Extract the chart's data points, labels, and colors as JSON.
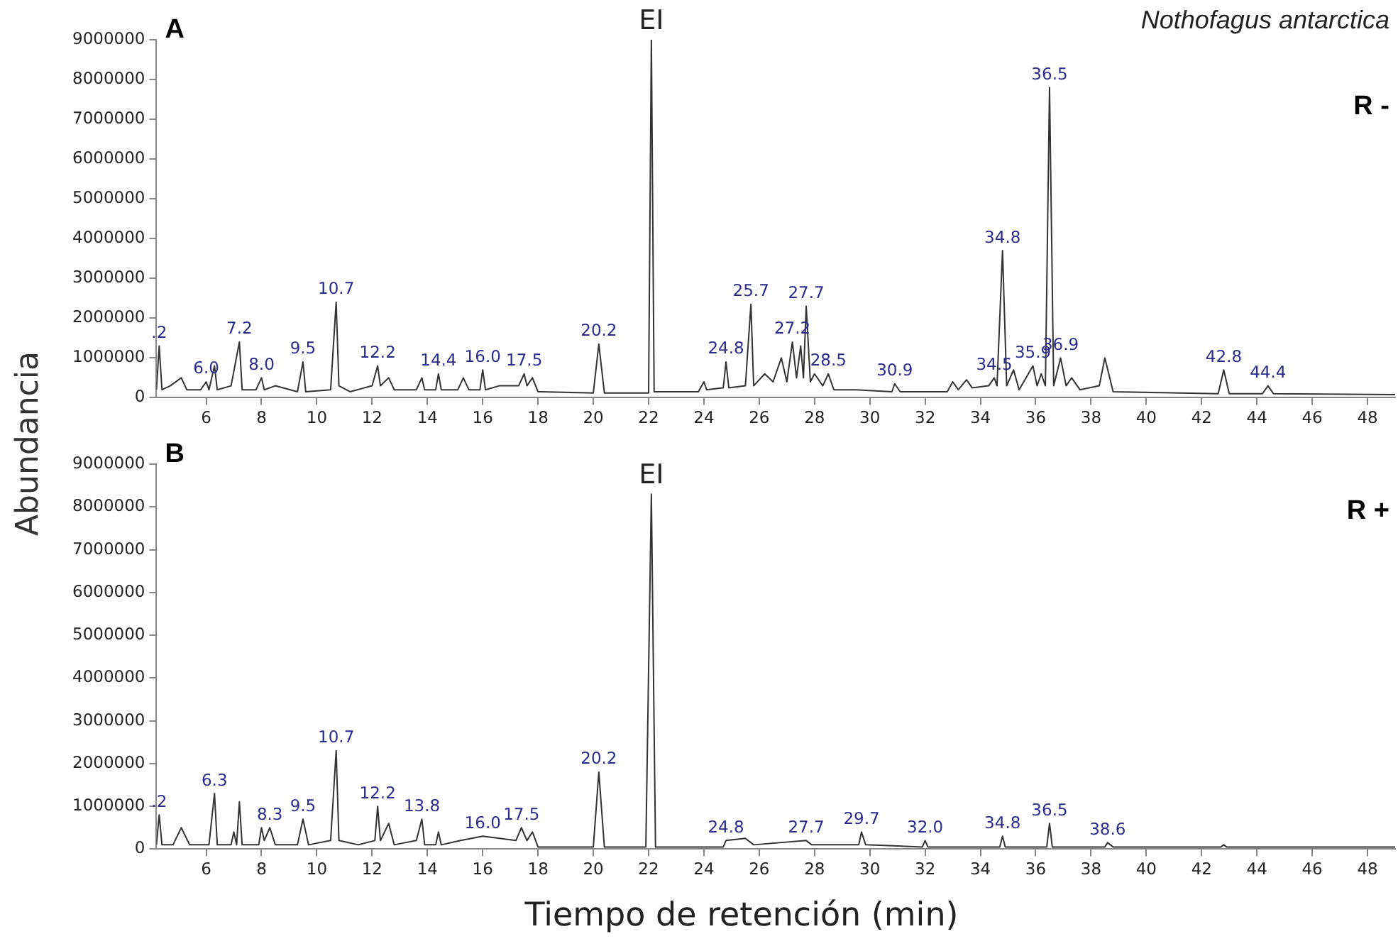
{
  "chart_data": [
    {
      "type": "line",
      "title": "A",
      "subtitle": "Nothofagus antarctica",
      "ylabel": "Abundancia",
      "color": "#333333",
      "marker": "none",
      "grid": false,
      "xlim": [
        4.2,
        49
      ],
      "xticks": [
        6,
        8,
        10,
        12,
        14,
        16,
        18,
        20,
        22,
        24,
        26,
        28,
        30,
        32,
        34,
        36,
        38,
        40,
        42,
        44,
        46,
        48
      ],
      "ylim": [
        0,
        9000000
      ],
      "yticks": [
        0,
        1000000,
        2000000,
        3000000,
        4000000,
        5000000,
        6000000,
        7000000,
        8000000,
        9000000
      ],
      "x": [
        4.2,
        4.3,
        4.4,
        4.7,
        5.1,
        5.3,
        5.8,
        6.0,
        6.1,
        6.3,
        6.4,
        6.9,
        7.2,
        7.3,
        7.8,
        8.0,
        8.1,
        8.5,
        9.3,
        9.5,
        9.6,
        10.5,
        10.7,
        10.8,
        11.2,
        12.0,
        12.2,
        12.3,
        12.6,
        12.8,
        13.6,
        13.8,
        13.9,
        14.3,
        14.4,
        14.5,
        15.1,
        15.3,
        15.5,
        15.9,
        16.0,
        16.1,
        16.6,
        17.3,
        17.5,
        17.6,
        17.8,
        18.0,
        20.0,
        20.2,
        20.4,
        22.0,
        22.1,
        22.2,
        23.8,
        24.0,
        24.1,
        24.7,
        24.8,
        24.9,
        25.5,
        25.7,
        25.8,
        26.2,
        26.5,
        26.8,
        27.0,
        27.2,
        27.35,
        27.5,
        27.6,
        27.7,
        27.85,
        28.0,
        28.3,
        28.5,
        28.7,
        29.5,
        30.8,
        30.9,
        31.1,
        32.8,
        33.0,
        33.2,
        33.5,
        33.7,
        34.3,
        34.5,
        34.6,
        34.8,
        34.95,
        35.2,
        35.4,
        35.9,
        36.05,
        36.2,
        36.35,
        36.5,
        36.65,
        36.9,
        37.1,
        37.3,
        37.6,
        38.3,
        38.5,
        38.8,
        42.6,
        42.8,
        43.0,
        44.2,
        44.4,
        44.6,
        49
      ],
      "values": [
        200000,
        1300000,
        200000,
        300000,
        500000,
        200000,
        200000,
        400000,
        200000,
        800000,
        200000,
        300000,
        1400000,
        200000,
        200000,
        500000,
        200000,
        300000,
        150000,
        900000,
        150000,
        200000,
        2400000,
        300000,
        150000,
        300000,
        800000,
        300000,
        500000,
        200000,
        200000,
        500000,
        200000,
        200000,
        600000,
        200000,
        200000,
        500000,
        200000,
        200000,
        700000,
        200000,
        300000,
        300000,
        600000,
        300000,
        500000,
        150000,
        120000,
        1350000,
        120000,
        120000,
        9000000,
        150000,
        150000,
        400000,
        200000,
        250000,
        900000,
        250000,
        300000,
        2350000,
        300000,
        600000,
        400000,
        1000000,
        400000,
        1400000,
        500000,
        1300000,
        500000,
        2300000,
        400000,
        600000,
        300000,
        600000,
        200000,
        200000,
        150000,
        350000,
        150000,
        150000,
        400000,
        200000,
        450000,
        250000,
        300000,
        500000,
        300000,
        3700000,
        300000,
        700000,
        200000,
        800000,
        300000,
        600000,
        300000,
        7800000,
        300000,
        1000000,
        300000,
        500000,
        200000,
        300000,
        1000000,
        150000,
        100000,
        700000,
        100000,
        100000,
        300000,
        100000,
        80000
      ],
      "annotations": [
        {
          "text": ".2",
          "x": 4.3,
          "y": 1300000
        },
        {
          "text": "6.0",
          "x": 6.0,
          "y": 400000
        },
        {
          "text": "7.2",
          "x": 7.2,
          "y": 1400000
        },
        {
          "text": "8.0",
          "x": 8.0,
          "y": 500000
        },
        {
          "text": "9.5",
          "x": 9.5,
          "y": 900000
        },
        {
          "text": "10.7",
          "x": 10.7,
          "y": 2400000
        },
        {
          "text": "12.2",
          "x": 12.2,
          "y": 800000
        },
        {
          "text": "14.4",
          "x": 14.4,
          "y": 600000
        },
        {
          "text": "16.0",
          "x": 16.0,
          "y": 700000
        },
        {
          "text": "17.5",
          "x": 17.5,
          "y": 600000
        },
        {
          "text": "20.2",
          "x": 20.2,
          "y": 1350000
        },
        {
          "text": "EI",
          "x": 22.1,
          "y": 9000000
        },
        {
          "text": "24.8",
          "x": 24.8,
          "y": 900000
        },
        {
          "text": "25.7",
          "x": 25.7,
          "y": 2350000
        },
        {
          "text": "27.2",
          "x": 27.2,
          "y": 1400000
        },
        {
          "text": "27.7",
          "x": 27.7,
          "y": 2300000
        },
        {
          "text": "28.5",
          "x": 28.5,
          "y": 600000
        },
        {
          "text": "30.9",
          "x": 30.9,
          "y": 350000
        },
        {
          "text": "34.5",
          "x": 34.5,
          "y": 500000
        },
        {
          "text": "34.8",
          "x": 34.8,
          "y": 3700000
        },
        {
          "text": "35.9",
          "x": 35.9,
          "y": 800000
        },
        {
          "text": "36.5",
          "x": 36.5,
          "y": 7800000
        },
        {
          "text": "36.9",
          "x": 36.9,
          "y": 1000000
        },
        {
          "text": "42.8",
          "x": 42.8,
          "y": 700000
        },
        {
          "text": "44.4",
          "x": 44.4,
          "y": 300000
        },
        "R -"
      ]
    },
    {
      "type": "line",
      "title": "B",
      "xlabel": "Tiempo de retención (min)",
      "color": "#333333",
      "marker": "none",
      "grid": false,
      "xlim": [
        4.2,
        49
      ],
      "xticks": [
        6,
        8,
        10,
        12,
        14,
        16,
        18,
        20,
        22,
        24,
        26,
        28,
        30,
        32,
        34,
        36,
        38,
        40,
        42,
        44,
        46,
        48
      ],
      "ylim": [
        0,
        9000000
      ],
      "yticks": [
        0,
        1000000,
        2000000,
        3000000,
        4000000,
        5000000,
        6000000,
        7000000,
        8000000,
        9000000
      ],
      "x": [
        4.2,
        4.3,
        4.4,
        4.8,
        5.1,
        5.4,
        6.1,
        6.3,
        6.4,
        6.9,
        7.0,
        7.1,
        7.2,
        7.3,
        7.9,
        8.0,
        8.1,
        8.3,
        8.5,
        9.3,
        9.5,
        9.7,
        10.5,
        10.7,
        10.8,
        11.5,
        12.1,
        12.2,
        12.3,
        12.6,
        12.8,
        13.6,
        13.8,
        13.9,
        14.3,
        14.4,
        14.5,
        15.2,
        16.0,
        17.2,
        17.4,
        17.6,
        17.8,
        18.0,
        20.0,
        20.2,
        20.4,
        21.9,
        22.1,
        22.25,
        24.7,
        24.8,
        25.5,
        25.8,
        27.7,
        27.9,
        29.6,
        29.7,
        29.85,
        31.9,
        32.0,
        32.1,
        34.7,
        34.8,
        34.9,
        36.4,
        36.5,
        36.6,
        38.5,
        38.6,
        38.8,
        42.7,
        42.8,
        42.9,
        49
      ],
      "values": [
        100000,
        800000,
        100000,
        100000,
        500000,
        100000,
        100000,
        1300000,
        100000,
        100000,
        400000,
        100000,
        1100000,
        100000,
        100000,
        500000,
        200000,
        500000,
        100000,
        100000,
        700000,
        100000,
        200000,
        2300000,
        200000,
        100000,
        200000,
        1000000,
        200000,
        600000,
        100000,
        200000,
        700000,
        100000,
        100000,
        400000,
        100000,
        200000,
        300000,
        200000,
        500000,
        200000,
        400000,
        50000,
        50000,
        1800000,
        50000,
        50000,
        8300000,
        50000,
        50000,
        200000,
        250000,
        100000,
        200000,
        100000,
        100000,
        400000,
        100000,
        50000,
        200000,
        50000,
        50000,
        300000,
        50000,
        50000,
        600000,
        50000,
        50000,
        150000,
        50000,
        50000,
        100000,
        50000,
        50000
      ],
      "annotations": [
        {
          "text": ".2",
          "x": 4.3,
          "y": 800000
        },
        {
          "text": "6.3",
          "x": 6.3,
          "y": 1300000
        },
        {
          "text": "8.3",
          "x": 8.3,
          "y": 500000
        },
        {
          "text": "9.5",
          "x": 9.5,
          "y": 700000
        },
        {
          "text": "10.7",
          "x": 10.7,
          "y": 2300000
        },
        {
          "text": "12.2",
          "x": 12.2,
          "y": 1000000
        },
        {
          "text": "13.8",
          "x": 13.8,
          "y": 700000
        },
        {
          "text": "16.0",
          "x": 16.0,
          "y": 300000
        },
        {
          "text": "17.5",
          "x": 17.4,
          "y": 500000
        },
        {
          "text": "20.2",
          "x": 20.2,
          "y": 1800000
        },
        {
          "text": "EI",
          "x": 22.1,
          "y": 8300000
        },
        {
          "text": "24.8",
          "x": 24.8,
          "y": 200000
        },
        {
          "text": "27.7",
          "x": 27.7,
          "y": 200000
        },
        {
          "text": "29.7",
          "x": 29.7,
          "y": 400000
        },
        {
          "text": "32.0",
          "x": 32.0,
          "y": 200000
        },
        {
          "text": "34.8",
          "x": 34.8,
          "y": 300000
        },
        {
          "text": "36.5",
          "x": 36.5,
          "y": 600000
        },
        {
          "text": "38.6",
          "x": 38.6,
          "y": 150000
        },
        "R +"
      ]
    }
  ]
}
